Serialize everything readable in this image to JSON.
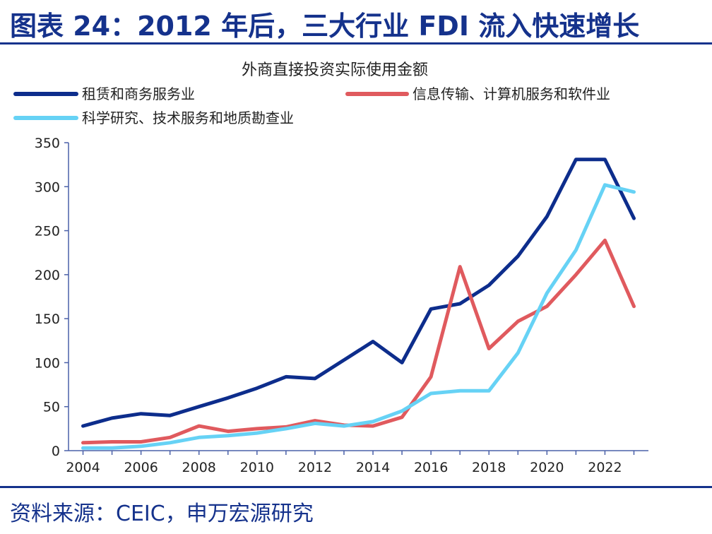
{
  "header": {
    "title": "图表 24：2012 年后，三大行业 FDI 流入快速增长"
  },
  "footer": {
    "source": "资料来源：CEIC，申万宏源研究"
  },
  "colors": {
    "brand": "#15328c",
    "series": [
      "#0d2d8c",
      "#e05a5e",
      "#66d2f5"
    ]
  },
  "chart_data": {
    "type": "line",
    "title": "外商直接投资实际使用金额",
    "xlabel": "",
    "ylabel": "",
    "x": [
      2004,
      2005,
      2006,
      2007,
      2008,
      2009,
      2010,
      2011,
      2012,
      2013,
      2014,
      2015,
      2016,
      2017,
      2018,
      2019,
      2020,
      2021,
      2022,
      2023
    ],
    "x_ticks": [
      "2004",
      "2006",
      "2008",
      "2010",
      "2012",
      "2014",
      "2016",
      "2018",
      "2020",
      "2022"
    ],
    "y_ticks": [
      "0",
      "50",
      "100",
      "150",
      "200",
      "250",
      "300",
      "350"
    ],
    "ylim": [
      0,
      350
    ],
    "grid": false,
    "legend_position": "top",
    "series": [
      {
        "name": "租赁和商务服务业",
        "color": "#0d2d8c",
        "values": [
          28,
          37,
          42,
          40,
          50,
          60,
          71,
          84,
          82,
          103,
          124,
          100,
          161,
          167,
          188,
          221,
          266,
          331,
          331,
          264
        ]
      },
      {
        "name": "信息传输、计算机服务和软件业",
        "color": "#e05a5e",
        "values": [
          9,
          10,
          10,
          15,
          28,
          22,
          25,
          27,
          34,
          29,
          28,
          38,
          84,
          209,
          116,
          147,
          164,
          200,
          239,
          164
        ]
      },
      {
        "name": "科学研究、技术服务和地质勘查业",
        "color": "#66d2f5",
        "values": [
          3,
          3,
          5,
          9,
          15,
          17,
          20,
          25,
          31,
          28,
          33,
          45,
          65,
          68,
          68,
          111,
          179,
          228,
          302,
          294
        ]
      }
    ]
  }
}
